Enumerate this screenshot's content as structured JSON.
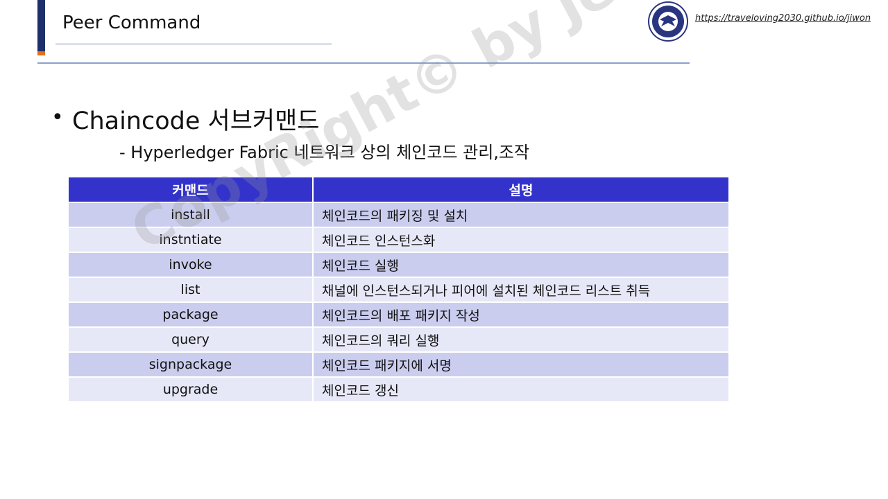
{
  "header": {
    "title": "Peer Command",
    "link_text": "https://traveloving2030.github.io/jiwon",
    "logo_icon": "university-emblem-icon"
  },
  "content": {
    "bullet_char": "•",
    "bullet_text": "Chaincode 서브커맨드",
    "sub_text": "- Hyperledger Fabric 네트워크 상의 체인코드 관리,조작"
  },
  "table": {
    "headers": [
      "커맨드",
      "설명"
    ],
    "rows": [
      {
        "command": "install",
        "description": "체인코드의 패키징 및 설치"
      },
      {
        "command": "instntiate",
        "description": "체인코드 인스턴스화"
      },
      {
        "command": "invoke",
        "description": "체인코드 실행"
      },
      {
        "command": "list",
        "description": "채널에 인스턴스되거나 피어에 설치된 체인코드 리스트 취득"
      },
      {
        "command": "package",
        "description": "체인코드의 배포 패키지 작성"
      },
      {
        "command": "query",
        "description": "체인코드의 쿼리 실행"
      },
      {
        "command": "signpackage",
        "description": "체인코드 패키지에 서명"
      },
      {
        "command": "upgrade",
        "description": "체인코드 갱신"
      }
    ]
  },
  "watermark": "CopyRight© by Jeong JiWon",
  "colors": {
    "header_blue": "#3333cc",
    "row_dark": "#cbcdef",
    "row_light": "#e7e8f7",
    "accent_navy": "#1f2f6b",
    "accent_orange": "#e07020"
  }
}
